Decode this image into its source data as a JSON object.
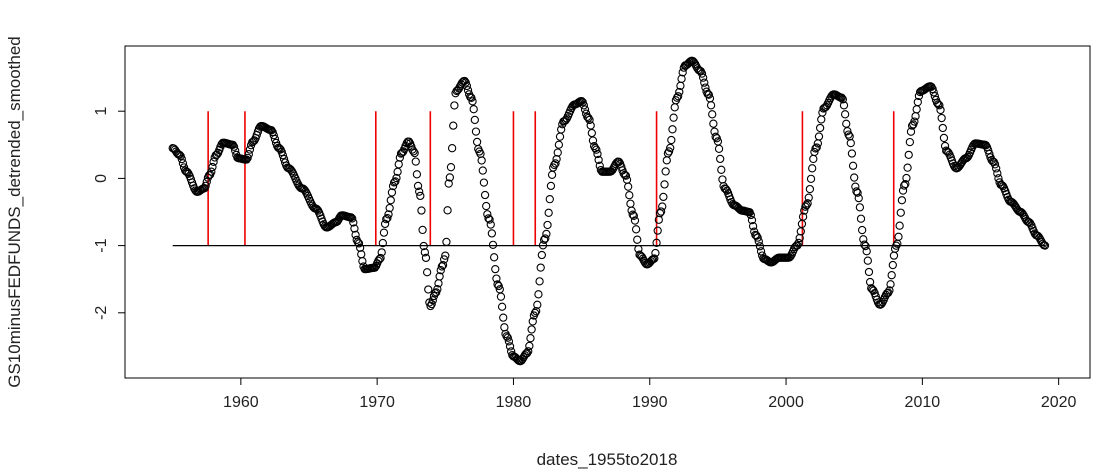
{
  "chart_data": {
    "type": "scatter",
    "xlabel": "dates_1955to2018",
    "ylabel": "GS10minusFEDFUNDS_detrended_smoothed",
    "xlim": [
      1951.5,
      2022.3
    ],
    "ylim": [
      -2.97,
      1.97
    ],
    "x_ticks": [
      1960,
      1970,
      1980,
      1990,
      2000,
      2010,
      2020
    ],
    "x_tick_labels": [
      "1960",
      "1970",
      "1980",
      "1990",
      "2000",
      "2010",
      "2020"
    ],
    "y_ticks": [
      -2,
      -1,
      0,
      1
    ],
    "y_tick_labels": [
      "-2",
      "-1",
      "0",
      "1"
    ],
    "baseline": {
      "y": -1,
      "x_start": 1955,
      "x_end": 2019,
      "color": "#000000"
    },
    "recession_color": "#ee0000",
    "recession_markers": [
      {
        "x": 1957.6,
        "y_top": 1.0
      },
      {
        "x": 1960.3,
        "y_top": 1.0
      },
      {
        "x": 1969.9,
        "y_top": 1.0
      },
      {
        "x": 1973.9,
        "y_top": 1.0
      },
      {
        "x": 1980.0,
        "y_top": 1.0
      },
      {
        "x": 1981.6,
        "y_top": 1.0
      },
      {
        "x": 1990.5,
        "y_top": 1.0
      },
      {
        "x": 2001.2,
        "y_top": 1.0
      },
      {
        "x": 2007.9,
        "y_top": 1.0
      }
    ],
    "series": [
      {
        "marker": "open-circle",
        "color": "#000000",
        "keypoints": [
          [
            1955.0,
            0.45
          ],
          [
            1955.5,
            0.35
          ],
          [
            1956.0,
            0.1
          ],
          [
            1956.8,
            -0.2
          ],
          [
            1957.3,
            -0.15
          ],
          [
            1957.7,
            0.05
          ],
          [
            1958.2,
            0.35
          ],
          [
            1958.7,
            0.53
          ],
          [
            1959.4,
            0.5
          ],
          [
            1959.8,
            0.3
          ],
          [
            1960.4,
            0.28
          ],
          [
            1960.9,
            0.55
          ],
          [
            1961.5,
            0.78
          ],
          [
            1962.2,
            0.72
          ],
          [
            1962.8,
            0.45
          ],
          [
            1963.5,
            0.15
          ],
          [
            1964.5,
            -0.15
          ],
          [
            1965.5,
            -0.45
          ],
          [
            1966.3,
            -0.73
          ],
          [
            1967.0,
            -0.65
          ],
          [
            1967.4,
            -0.55
          ],
          [
            1968.1,
            -0.58
          ],
          [
            1968.6,
            -0.95
          ],
          [
            1969.1,
            -1.35
          ],
          [
            1969.8,
            -1.33
          ],
          [
            1970.2,
            -1.2
          ],
          [
            1970.7,
            -0.6
          ],
          [
            1971.3,
            -0.05
          ],
          [
            1971.8,
            0.38
          ],
          [
            1972.3,
            0.55
          ],
          [
            1972.7,
            0.4
          ],
          [
            1973.1,
            -0.2
          ],
          [
            1973.5,
            -1.1
          ],
          [
            1973.9,
            -1.9
          ],
          [
            1974.3,
            -1.7
          ],
          [
            1974.8,
            -1.3
          ],
          [
            1975.0,
            -1.15
          ],
          [
            1975.3,
            0.0
          ],
          [
            1975.8,
            1.3
          ],
          [
            1976.4,
            1.45
          ],
          [
            1976.9,
            1.2
          ],
          [
            1977.5,
            0.4
          ],
          [
            1978.2,
            -0.6
          ],
          [
            1978.9,
            -1.6
          ],
          [
            1979.5,
            -2.35
          ],
          [
            1980.0,
            -2.65
          ],
          [
            1980.5,
            -2.72
          ],
          [
            1981.0,
            -2.6
          ],
          [
            1981.6,
            -2.0
          ],
          [
            1982.3,
            -0.9
          ],
          [
            1983.0,
            0.2
          ],
          [
            1983.7,
            0.85
          ],
          [
            1984.5,
            1.1
          ],
          [
            1985.0,
            1.15
          ],
          [
            1985.5,
            0.9
          ],
          [
            1986.0,
            0.45
          ],
          [
            1986.5,
            0.1
          ],
          [
            1987.1,
            0.1
          ],
          [
            1987.7,
            0.25
          ],
          [
            1988.2,
            0.05
          ],
          [
            1988.8,
            -0.55
          ],
          [
            1989.3,
            -1.15
          ],
          [
            1989.8,
            -1.28
          ],
          [
            1990.3,
            -1.2
          ],
          [
            1990.8,
            -0.5
          ],
          [
            1991.4,
            0.4
          ],
          [
            1992.0,
            1.2
          ],
          [
            1992.6,
            1.68
          ],
          [
            1993.1,
            1.75
          ],
          [
            1993.7,
            1.6
          ],
          [
            1994.3,
            1.25
          ],
          [
            1994.9,
            0.6
          ],
          [
            1995.5,
            -0.15
          ],
          [
            1996.2,
            -0.4
          ],
          [
            1996.8,
            -0.48
          ],
          [
            1997.3,
            -0.5
          ],
          [
            1997.8,
            -0.85
          ],
          [
            1998.4,
            -1.2
          ],
          [
            1998.9,
            -1.25
          ],
          [
            1999.5,
            -1.18
          ],
          [
            2000.2,
            -1.18
          ],
          [
            2000.8,
            -1.0
          ],
          [
            2001.5,
            -0.4
          ],
          [
            2002.2,
            0.45
          ],
          [
            2002.8,
            1.05
          ],
          [
            2003.5,
            1.25
          ],
          [
            2004.1,
            1.2
          ],
          [
            2004.6,
            0.65
          ],
          [
            2005.2,
            -0.2
          ],
          [
            2005.8,
            -1.0
          ],
          [
            2006.3,
            -1.65
          ],
          [
            2006.9,
            -1.88
          ],
          [
            2007.5,
            -1.7
          ],
          [
            2008.1,
            -1.0
          ],
          [
            2008.7,
            -0.1
          ],
          [
            2009.3,
            0.8
          ],
          [
            2009.9,
            1.3
          ],
          [
            2010.6,
            1.37
          ],
          [
            2011.2,
            1.1
          ],
          [
            2011.8,
            0.4
          ],
          [
            2012.5,
            0.15
          ],
          [
            2013.2,
            0.3
          ],
          [
            2013.9,
            0.52
          ],
          [
            2014.6,
            0.5
          ],
          [
            2015.2,
            0.25
          ],
          [
            2015.8,
            -0.1
          ],
          [
            2016.5,
            -0.35
          ],
          [
            2017.2,
            -0.5
          ],
          [
            2017.8,
            -0.65
          ],
          [
            2018.4,
            -0.85
          ],
          [
            2019.0,
            -1.0
          ]
        ]
      }
    ]
  }
}
